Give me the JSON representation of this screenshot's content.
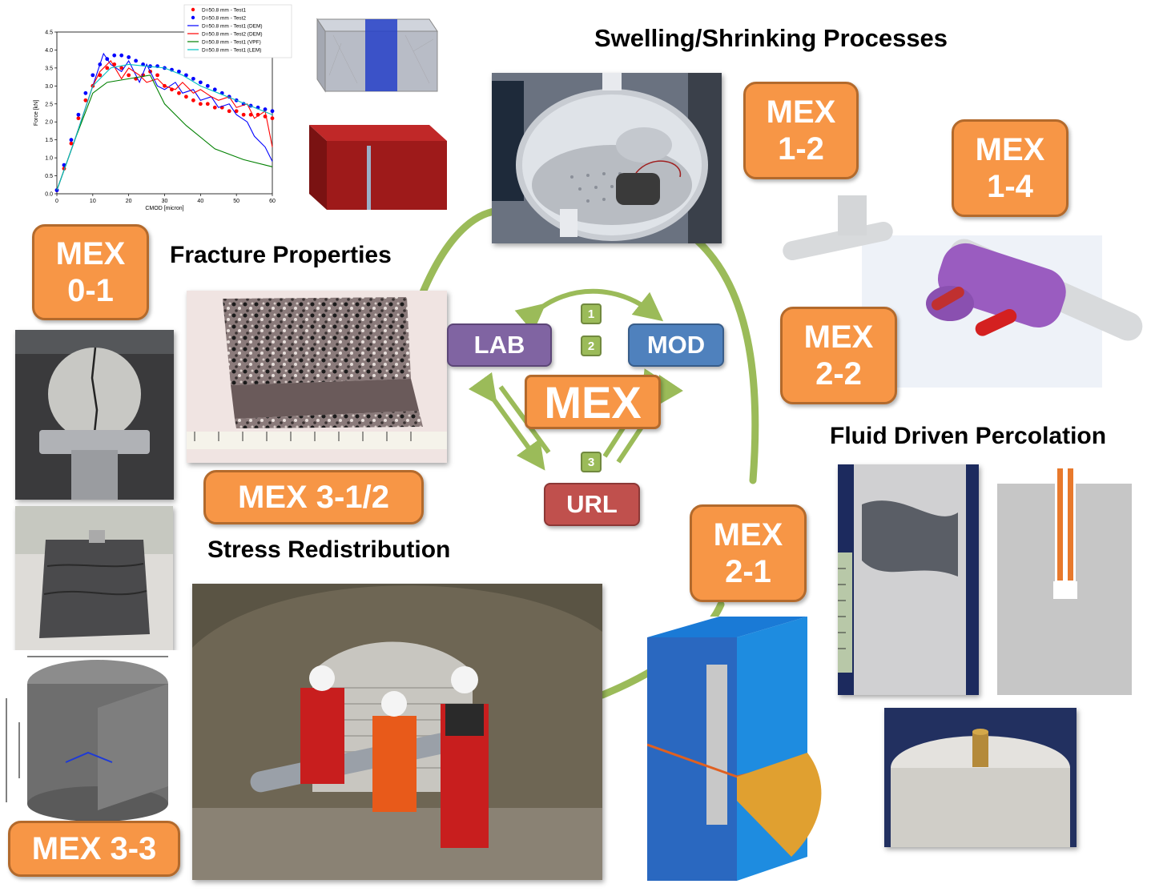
{
  "headings": {
    "swelling": "Swelling/Shrinking Processes",
    "fracture": "Fracture Properties",
    "stress": "Stress Redistribution",
    "fluid": "Fluid Driven Percolation"
  },
  "center": {
    "lab": "LAB",
    "mod": "MOD",
    "mex": "MEX",
    "url": "URL",
    "step1": "1",
    "step2": "2",
    "step3": "3"
  },
  "badges": {
    "mex_0_1": [
      "MEX",
      "0-1"
    ],
    "mex_1_2": [
      "MEX",
      "1-2"
    ],
    "mex_1_4": [
      "MEX",
      "1-4"
    ],
    "mex_2_2": [
      "MEX",
      "2-2"
    ],
    "mex_2_1": [
      "MEX",
      "2-1"
    ],
    "mex_3_12": "MEX 3-1/2",
    "mex_3_3": "MEX 3-3"
  },
  "colors": {
    "badge_fill": "#f79646",
    "badge_border": "#b36a2c",
    "lab": "#8064a2",
    "mod": "#4f81bd",
    "mex": "#f79646",
    "url": "#c0504d",
    "arc": "#9bbb59"
  },
  "chart_data": {
    "type": "line",
    "xlabel": "CMOD [micron]",
    "ylabel": "Force [kN]",
    "xlim": [
      0,
      60
    ],
    "ylim": [
      0,
      4.5
    ],
    "xticks": [
      "0",
      "10",
      "20",
      "30",
      "40",
      "50",
      "60"
    ],
    "yticks": [
      "0.0",
      "0.5",
      "1.0",
      "1.5",
      "2.0",
      "2.5",
      "3.0",
      "3.5",
      "4.0",
      "4.5"
    ],
    "legend_position": "top-right",
    "series": [
      {
        "name": "D=50.8 mm - Test1",
        "style": "markers",
        "color": "#ff0000",
        "x": [
          0,
          2,
          4,
          6,
          8,
          10,
          12,
          14,
          16,
          18,
          20,
          22,
          24,
          26,
          28,
          30,
          32,
          34,
          36,
          38,
          40,
          42,
          44,
          46,
          48,
          50,
          52,
          54,
          56,
          58,
          60
        ],
        "y": [
          0.1,
          0.7,
          1.4,
          2.1,
          2.6,
          3.0,
          3.3,
          3.5,
          3.6,
          3.5,
          3.3,
          3.2,
          3.3,
          3.4,
          3.3,
          3.0,
          2.9,
          2.8,
          2.7,
          2.6,
          2.5,
          2.5,
          2.4,
          2.4,
          2.3,
          2.3,
          2.2,
          2.2,
          2.2,
          2.15,
          2.1
        ]
      },
      {
        "name": "D=50.8 mm - Test2",
        "style": "markers",
        "color": "#0000ff",
        "x": [
          0,
          2,
          4,
          6,
          8,
          10,
          12,
          14,
          16,
          18,
          20,
          22,
          24,
          26,
          28,
          30,
          32,
          34,
          36,
          38,
          40,
          42,
          44,
          46,
          48,
          50,
          52,
          54,
          56,
          58,
          60
        ],
        "y": [
          0.1,
          0.8,
          1.5,
          2.2,
          2.8,
          3.3,
          3.6,
          3.75,
          3.85,
          3.85,
          3.8,
          3.7,
          3.6,
          3.55,
          3.55,
          3.5,
          3.45,
          3.4,
          3.3,
          3.2,
          3.1,
          3.0,
          2.9,
          2.8,
          2.7,
          2.6,
          2.5,
          2.45,
          2.4,
          2.35,
          2.3
        ]
      },
      {
        "name": "D=50.8 mm - Test1 (DEM)",
        "style": "line",
        "color": "#0000ff",
        "x": [
          0,
          5,
          10,
          13,
          15,
          18,
          20,
          23,
          25,
          28,
          30,
          33,
          35,
          38,
          40,
          43,
          45,
          48,
          50,
          53,
          55,
          58,
          60
        ],
        "y": [
          0.1,
          1.5,
          3.0,
          3.9,
          3.6,
          3.4,
          3.7,
          3.1,
          3.6,
          3.0,
          2.9,
          3.1,
          2.8,
          2.9,
          2.6,
          2.7,
          2.4,
          2.5,
          2.2,
          2.0,
          1.6,
          1.3,
          0.9
        ]
      },
      {
        "name": "D=50.8 mm - Test2 (DEM)",
        "style": "line",
        "color": "#ff0000",
        "x": [
          0,
          5,
          10,
          12,
          15,
          18,
          20,
          23,
          25,
          28,
          30,
          33,
          35,
          38,
          40,
          43,
          45,
          48,
          50,
          53,
          55,
          58,
          60
        ],
        "y": [
          0.1,
          1.5,
          3.0,
          3.4,
          3.7,
          3.2,
          3.5,
          3.3,
          3.1,
          3.2,
          3.0,
          2.9,
          3.1,
          2.8,
          2.9,
          2.7,
          2.6,
          2.7,
          2.4,
          2.5,
          2.1,
          2.3,
          1.3
        ]
      },
      {
        "name": "D=50.8 mm - Test1 (VPF)",
        "style": "line",
        "color": "#008000",
        "x": [
          0,
          5,
          10,
          14,
          20,
          26,
          30,
          36,
          44,
          52,
          60
        ],
        "y": [
          0.1,
          1.5,
          2.8,
          3.1,
          3.2,
          3.3,
          2.5,
          1.9,
          1.25,
          0.95,
          0.75
        ]
      },
      {
        "name": "D=50.8 mm - Test1 (LEM)",
        "style": "line",
        "color": "#00c0c0",
        "x": [
          0,
          5,
          10,
          15,
          20,
          25,
          30,
          35,
          40,
          45,
          50,
          55,
          60
        ],
        "y": [
          0.1,
          1.5,
          3.0,
          3.5,
          3.6,
          3.55,
          3.5,
          3.3,
          3.0,
          2.8,
          2.6,
          2.4,
          2.2
        ]
      }
    ]
  }
}
